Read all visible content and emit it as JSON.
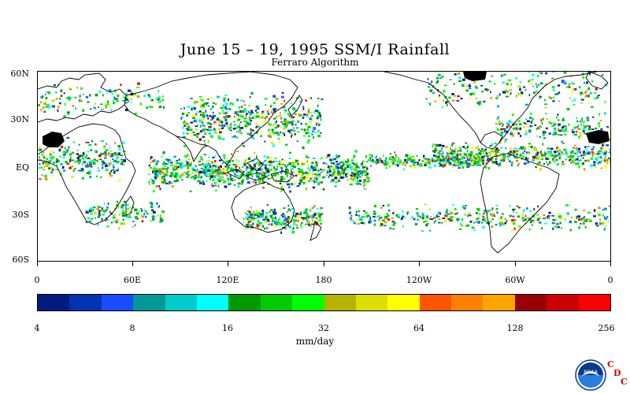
{
  "title": "June 15 – 19, 1995 SSM/I Rainfall",
  "subtitle": "Ferraro Algorithm",
  "lat_labels": [
    "60N",
    "30N",
    "EQ",
    "30S",
    "60S"
  ],
  "lon_labels": [
    "0",
    "60E",
    "120E",
    "180",
    "120W",
    "60W",
    "0"
  ],
  "colorbar": {
    "colors": [
      "#001a80",
      "#0033b3",
      "#1a4dff",
      "#009999",
      "#00cccc",
      "#00ffff",
      "#009900",
      "#00cc00",
      "#00ff00",
      "#b3b300",
      "#dddd00",
      "#ffff00",
      "#ff5500",
      "#ff8000",
      "#ffa500",
      "#990000",
      "#cc0000",
      "#ff0000"
    ],
    "tick_labels": [
      "4",
      "8",
      "16",
      "32",
      "64",
      "128",
      "256"
    ],
    "units": "mm/day"
  },
  "logo": {
    "name": "noaa-logo",
    "text": "NOAA"
  },
  "cdc_letters": [
    "C",
    "D",
    "C"
  ]
}
